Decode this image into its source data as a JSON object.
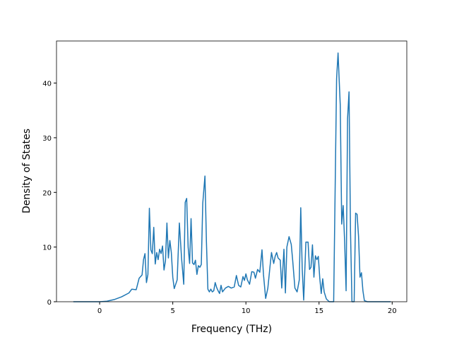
{
  "chart_data": {
    "type": "line",
    "x_label": "Frequency (THz)",
    "y_label": "Density of States",
    "x": [
      -1.8,
      0,
      0.5,
      1,
      1.5,
      2,
      2.2,
      2.5,
      2.7,
      2.9,
      3.0,
      3.1,
      3.2,
      3.3,
      3.4,
      3.5,
      3.6,
      3.7,
      3.8,
      3.9,
      4.0,
      4.1,
      4.2,
      4.3,
      4.4,
      4.5,
      4.6,
      4.7,
      4.8,
      4.9,
      5.0,
      5.1,
      5.3,
      5.45,
      5.6,
      5.75,
      5.85,
      5.95,
      6.05,
      6.15,
      6.25,
      6.35,
      6.45,
      6.55,
      6.65,
      6.75,
      6.85,
      6.95,
      7.05,
      7.2,
      7.3,
      7.4,
      7.5,
      7.6,
      7.7,
      7.8,
      7.9,
      8.0,
      8.1,
      8.2,
      8.3,
      8.4,
      8.6,
      8.8,
      9.0,
      9.2,
      9.35,
      9.5,
      9.65,
      9.8,
      9.9,
      10.0,
      10.1,
      10.25,
      10.4,
      10.55,
      10.65,
      10.8,
      10.95,
      11.1,
      11.2,
      11.35,
      11.5,
      11.65,
      11.75,
      11.9,
      12.0,
      12.1,
      12.2,
      12.35,
      12.45,
      12.6,
      12.7,
      12.8,
      12.95,
      13.1,
      13.2,
      13.35,
      13.5,
      13.65,
      13.75,
      13.85,
      13.95,
      14.1,
      14.25,
      14.35,
      14.45,
      14.55,
      14.65,
      14.75,
      14.85,
      14.95,
      15.05,
      15.15,
      15.25,
      15.35,
      15.5,
      15.7,
      16.0,
      16.2,
      16.3,
      16.45,
      16.55,
      16.65,
      16.75,
      16.85,
      16.95,
      17.05,
      17.15,
      17.25,
      17.4,
      17.5,
      17.6,
      17.7,
      17.8,
      17.9,
      18.0,
      18.1,
      18.3,
      19.9
    ],
    "values": [
      0,
      0,
      0.1,
      0.4,
      0.9,
      1.6,
      2.3,
      2.2,
      4.3,
      4.9,
      7.7,
      8.8,
      3.5,
      5,
      17.1,
      9.5,
      8.8,
      13.6,
      6.9,
      9,
      7.7,
      9.6,
      8.8,
      10.2,
      5.8,
      7.5,
      14.4,
      8,
      11.2,
      9,
      4.5,
      2.4,
      4,
      14.4,
      8,
      3.2,
      18.2,
      18.9,
      10,
      7,
      15.2,
      7.1,
      6.8,
      7.6,
      5,
      6.6,
      6.3,
      6.8,
      18,
      23,
      11,
      2.3,
      1.8,
      2.3,
      1.8,
      2,
      3.5,
      2.6,
      2,
      1.5,
      3,
      1.8,
      2.5,
      2.8,
      2.5,
      2.7,
      4.8,
      3,
      2.7,
      4.6,
      3.9,
      5.1,
      4,
      3.2,
      5.5,
      5.4,
      4.3,
      5.9,
      5.4,
      9.5,
      5,
      0.6,
      2.5,
      6.5,
      9,
      7,
      8.3,
      9,
      8,
      7.6,
      2.5,
      9.6,
      1.6,
      10,
      11.9,
      10.5,
      7.5,
      2.5,
      1.8,
      4,
      17.2,
      6,
      0.3,
      10.9,
      10.9,
      5.9,
      6.3,
      10.4,
      4.5,
      8.4,
      7.7,
      8.3,
      4.3,
      1.5,
      4.2,
      1.8,
      0.5,
      0,
      0,
      40.8,
      45.5,
      36,
      14.2,
      17.6,
      11,
      2,
      33.5,
      38.4,
      13,
      0,
      0,
      16.2,
      16,
      12,
      4.5,
      5.3,
      2,
      0.2,
      0,
      0
    ],
    "color": "#1f77b4",
    "xlim": [
      -2.95,
      21.0
    ],
    "ylim": [
      0,
      47.7
    ],
    "xticks": [
      0,
      5,
      10,
      15,
      20
    ],
    "yticks": [
      0,
      10,
      20,
      30,
      40
    ]
  }
}
